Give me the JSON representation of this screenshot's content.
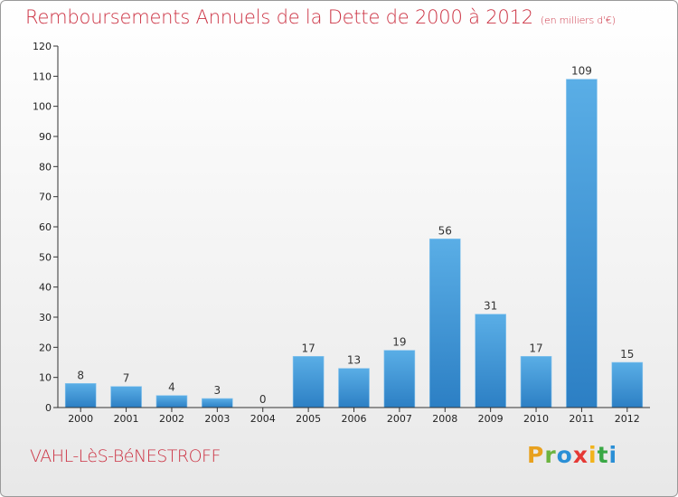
{
  "colors": {
    "title": "#cc3344",
    "bar_light": "#5aaee6",
    "bar_dark": "#2c7fc4",
    "axis": "#333333",
    "grid": "#dddddd"
  },
  "chart_data": {
    "type": "bar",
    "title": "Remboursements Annuels de la Dette de 2000 à 2012",
    "unit": "(en milliers d'€)",
    "xlabel": "",
    "ylabel": "",
    "categories": [
      "2000",
      "2001",
      "2002",
      "2003",
      "2004",
      "2005",
      "2006",
      "2007",
      "2008",
      "2009",
      "2010",
      "2011",
      "2012"
    ],
    "values": [
      8,
      7,
      4,
      3,
      0,
      17,
      13,
      19,
      56,
      31,
      17,
      109,
      15
    ],
    "value_labels": [
      "8",
      "7",
      "4",
      "3",
      "0",
      "17",
      "13",
      "19",
      "56",
      "31",
      "17",
      "109",
      "15"
    ],
    "ylim": [
      0,
      120
    ],
    "yticks": [
      0,
      10,
      20,
      30,
      40,
      50,
      60,
      70,
      80,
      90,
      100,
      110,
      120
    ],
    "ytick_labels": [
      "0",
      "10",
      "20",
      "30",
      "40",
      "50",
      "60",
      "70",
      "80",
      "90",
      "100",
      "110",
      "120"
    ],
    "grid": false,
    "legend": "none"
  },
  "footer": {
    "commune": "VAHL-LèS-BéNESTROFF",
    "logo_letters": [
      {
        "char": "P",
        "color": "#e8a11f"
      },
      {
        "char": "r",
        "color": "#6cb33f"
      },
      {
        "char": "o",
        "color": "#2a8fd6"
      },
      {
        "char": "x",
        "color": "#e53935"
      },
      {
        "char": "i",
        "color": "#f2b31b"
      },
      {
        "char": "t",
        "color": "#3aa845"
      },
      {
        "char": "i",
        "color": "#2a8fd6"
      }
    ]
  }
}
